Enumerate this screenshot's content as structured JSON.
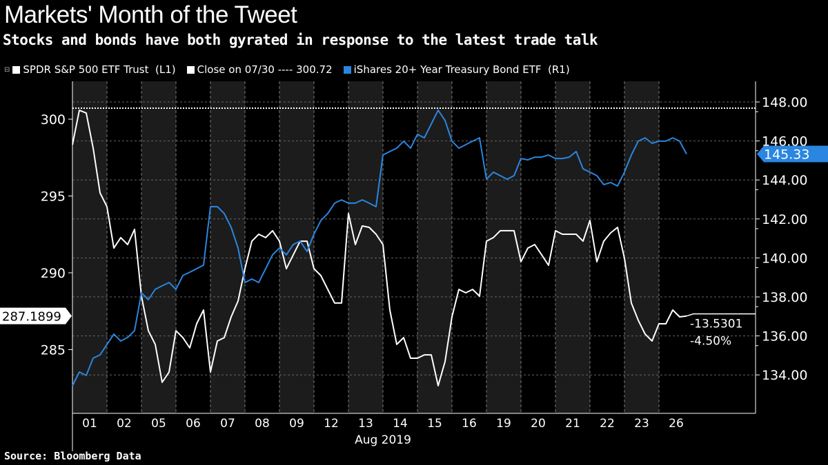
{
  "chart_data": {
    "type": "line",
    "title": "Markets' Month of the Tweet",
    "subtitle": "Stocks and bonds have both gyrated in response to the latest trade talk",
    "source": "Source: Bloomberg Data",
    "xlabel": "Aug 2019",
    "x_ticks": [
      "01",
      "02",
      "05",
      "06",
      "07",
      "08",
      "09",
      "12",
      "13",
      "14",
      "15",
      "16",
      "19",
      "20",
      "21",
      "22",
      "23",
      "26"
    ],
    "shaded_days": [
      "01",
      "05",
      "07",
      "09",
      "13",
      "15",
      "19",
      "21",
      "23"
    ],
    "x_step_days": 0.2,
    "legend": {
      "spy": "SPDR S&P 500 ETF Trust  (L1)",
      "close": "Close on 07/30 ---- 300.72",
      "tlt": "iShares 20+ Year Treasury Bond ETF  (R1)"
    },
    "left_axis": {
      "ticks": [
        "300",
        "295",
        "290",
        "285"
      ],
      "values": [
        300,
        295,
        290,
        285
      ],
      "range": [
        281.2,
        302.1
      ]
    },
    "right_axis": {
      "ticks": [
        "148.00",
        "146.00",
        "144.00",
        "142.00",
        "140.00",
        "138.00",
        "136.00",
        "134.00"
      ],
      "values": [
        148,
        146,
        144,
        142,
        140,
        138,
        136,
        134
      ],
      "range": [
        132.5,
        149.2
      ]
    },
    "reference_close": 300.72,
    "last_spy_label": "287.1899",
    "last_tlt_label": "145.33",
    "change_abs": "-13.5301",
    "change_pct": "-4.50%",
    "colors": {
      "spy": "#ffffff",
      "tlt": "#2a86e0",
      "shade": "#1c1c1c"
    },
    "series": [
      {
        "name": "SPDR S&P 500 ETF Trust",
        "axis": "left",
        "values": [
          298.34,
          300.58,
          300.4,
          298.12,
          295.2,
          294.3,
          291.61,
          292.29,
          291.84,
          292.83,
          288.48,
          286.23,
          285.34,
          282.87,
          283.54,
          286.23,
          285.78,
          285.11,
          286.68,
          287.58,
          283.54,
          285.56,
          285.78,
          287.13,
          288.16,
          290.27,
          292.06,
          292.51,
          292.29,
          292.74,
          292.06,
          290.27,
          291.17,
          292.06,
          292.06,
          290.27,
          289.82,
          288.92,
          288.03,
          288.03,
          293.86,
          291.84,
          293.05,
          292.96,
          292.51,
          291.84,
          287.58,
          285.34,
          285.78,
          284.44,
          284.44,
          284.66,
          284.66,
          282.65,
          284.22,
          287.13,
          288.92,
          288.7,
          288.92,
          288.48,
          292.06,
          292.29,
          292.74,
          292.74,
          292.74,
          290.72,
          291.61,
          291.84,
          291.17,
          290.49,
          292.74,
          292.51,
          292.51,
          292.51,
          292.06,
          293.41,
          290.72,
          292.06,
          292.6,
          292.96,
          290.94,
          288.03,
          286.91,
          286.01,
          285.56,
          286.68,
          286.68,
          287.58,
          287.13,
          287.19
        ]
      },
      {
        "name": "iShares 20+ Year Treasury Bond ETF",
        "axis": "right",
        "values": [
          133.44,
          134.15,
          133.97,
          134.86,
          135.03,
          135.56,
          136.09,
          135.74,
          135.92,
          136.27,
          138.21,
          137.86,
          138.39,
          138.57,
          138.74,
          138.39,
          139.1,
          139.27,
          139.45,
          139.63,
          142.63,
          142.63,
          142.28,
          141.57,
          140.51,
          138.74,
          138.92,
          138.74,
          139.45,
          140.16,
          140.51,
          140.16,
          140.69,
          140.86,
          140.33,
          141.22,
          141.92,
          142.28,
          142.81,
          142.98,
          142.81,
          142.81,
          142.98,
          142.81,
          142.63,
          145.28,
          145.46,
          145.63,
          145.99,
          145.63,
          146.34,
          146.16,
          146.87,
          147.58,
          147.05,
          145.99,
          145.63,
          145.81,
          145.99,
          146.16,
          144.04,
          144.4,
          144.22,
          144.04,
          144.22,
          145.1,
          145.03,
          145.17,
          145.17,
          145.28,
          145.1,
          145.1,
          145.17,
          145.46,
          144.57,
          144.4,
          144.22,
          143.76,
          143.87,
          143.69,
          144.4,
          145.28,
          145.99,
          146.16,
          145.88,
          145.99,
          145.99,
          146.16,
          145.99,
          145.33
        ]
      }
    ]
  }
}
